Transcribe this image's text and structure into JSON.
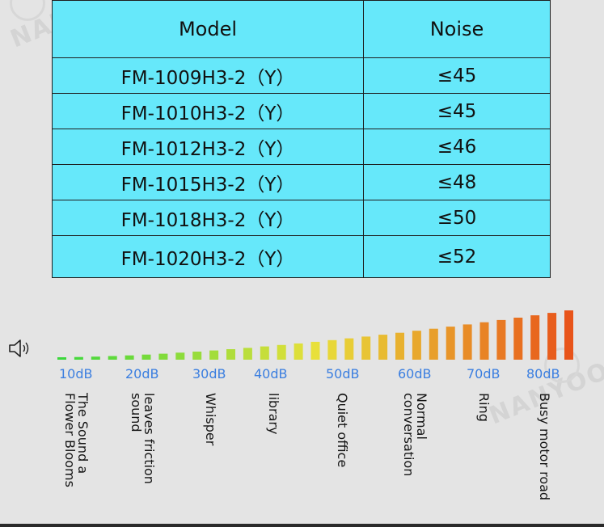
{
  "watermark": "NANYOO",
  "table": {
    "headers": [
      "Model",
      "Noise"
    ],
    "rows": [
      [
        "FM-1009H3-2（Y）",
        "≤45"
      ],
      [
        "FM-1010H3-2（Y）",
        "≤45"
      ],
      [
        "FM-1012H3-2（Y）",
        "≤46"
      ],
      [
        "FM-1015H3-2（Y）",
        "≤48"
      ],
      [
        "FM-1018H3-2（Y）",
        "≤50"
      ],
      [
        "FM-1020H3-2（Y）",
        "≤52"
      ]
    ]
  },
  "scale": {
    "icon": "speaker-icon",
    "labels": [
      "10dB",
      "20dB",
      "30dB",
      "40dB",
      "50dB",
      "60dB",
      "70dB",
      "80dB"
    ],
    "descriptions": [
      "The Sound a\nFlower Blooms",
      "leaves friction\nsound",
      "Whisper",
      "library",
      "Quiet office",
      "Normal\nconversation",
      "Ring",
      "Busy motor road"
    ],
    "label_color": "#3a7ee0",
    "colors": {
      "low": "#3cd83c",
      "mid": "#e8e03a",
      "high": "#e8541a"
    }
  }
}
